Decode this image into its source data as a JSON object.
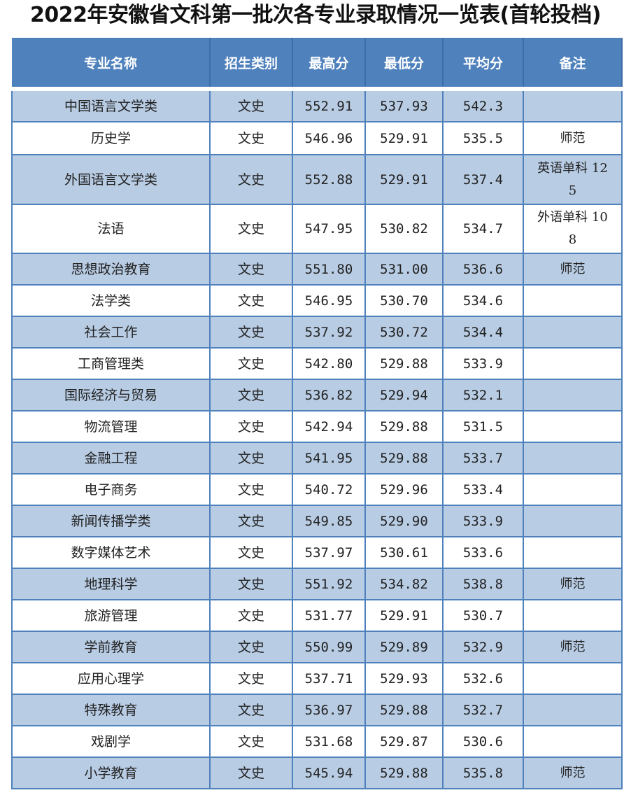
{
  "title": "2022年安徽省文科第一批次各专业录取情况一览表(首轮投档)",
  "colors": {
    "header_bg": "#4f81bd",
    "odd_row_bg": "#b8cce4",
    "even_row_bg": "#ffffff",
    "border": "#4f81bd"
  },
  "table": {
    "headers": [
      "专业名称",
      "招生类别",
      "最高分",
      "最低分",
      "平均分",
      "备注"
    ],
    "rows": [
      [
        "中国语言文学类",
        "文史",
        "552.91",
        "537.93",
        "542.3",
        ""
      ],
      [
        "历史学",
        "文史",
        "546.96",
        "529.91",
        "535.5",
        "师范"
      ],
      [
        "外国语言文学类",
        "文史",
        "552.88",
        "529.91",
        "537.4",
        "英语单科 125"
      ],
      [
        "法语",
        "文史",
        "547.95",
        "530.82",
        "534.7",
        "外语单科 108"
      ],
      [
        "思想政治教育",
        "文史",
        "551.80",
        "531.00",
        "536.6",
        "师范"
      ],
      [
        "法学类",
        "文史",
        "546.95",
        "530.70",
        "534.6",
        ""
      ],
      [
        "社会工作",
        "文史",
        "537.92",
        "530.72",
        "534.4",
        ""
      ],
      [
        "工商管理类",
        "文史",
        "542.80",
        "529.88",
        "533.9",
        ""
      ],
      [
        "国际经济与贸易",
        "文史",
        "536.82",
        "529.94",
        "532.1",
        ""
      ],
      [
        "物流管理",
        "文史",
        "542.94",
        "529.88",
        "531.5",
        ""
      ],
      [
        "金融工程",
        "文史",
        "541.95",
        "529.88",
        "533.7",
        ""
      ],
      [
        "电子商务",
        "文史",
        "540.72",
        "529.96",
        "533.4",
        ""
      ],
      [
        "新闻传播学类",
        "文史",
        "549.85",
        "529.90",
        "533.9",
        ""
      ],
      [
        "数字媒体艺术",
        "文史",
        "537.97",
        "530.61",
        "533.6",
        ""
      ],
      [
        "地理科学",
        "文史",
        "551.92",
        "534.82",
        "538.8",
        "师范"
      ],
      [
        "旅游管理",
        "文史",
        "531.77",
        "529.91",
        "530.7",
        ""
      ],
      [
        "学前教育",
        "文史",
        "550.99",
        "529.89",
        "532.9",
        "师范"
      ],
      [
        "应用心理学",
        "文史",
        "537.71",
        "529.93",
        "532.6",
        ""
      ],
      [
        "特殊教育",
        "文史",
        "536.97",
        "529.88",
        "532.7",
        ""
      ],
      [
        "戏剧学",
        "文史",
        "531.68",
        "529.87",
        "530.6",
        ""
      ],
      [
        "小学教育",
        "文史",
        "545.94",
        "529.88",
        "535.8",
        "师范"
      ]
    ]
  }
}
